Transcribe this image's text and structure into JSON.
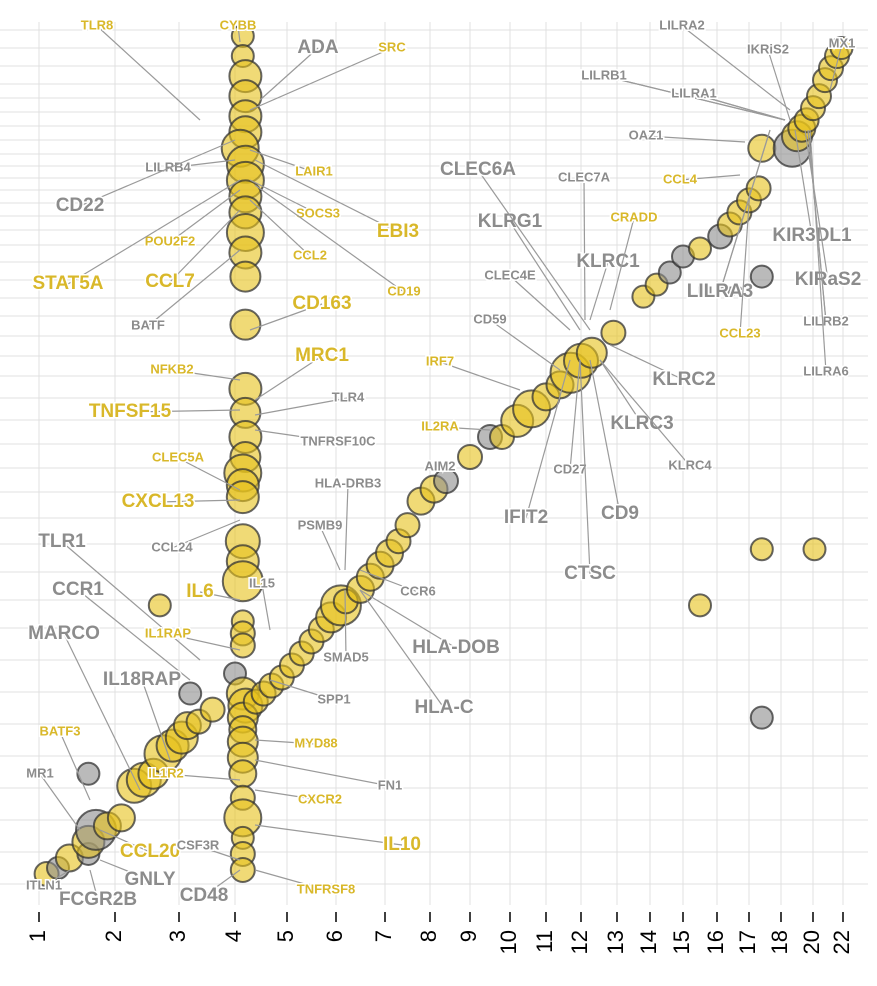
{
  "chart_data": {
    "type": "scatter",
    "title": "",
    "xlabel": "",
    "ylabel": "",
    "colors": {
      "yellow": "#e6c21a",
      "gray": "#8c8c8c",
      "label_yellow": "#d9b82a",
      "label_gray": "#8c8c8c",
      "grid": "#e0e0e0"
    },
    "x_ticks": [
      "1",
      "2",
      "3",
      "4",
      "5",
      "6",
      "7",
      "8",
      "9",
      "10",
      "11",
      "12",
      "13",
      "14",
      "15",
      "16",
      "17",
      "18",
      "20",
      "22"
    ],
    "x_tick_values": [
      1,
      2,
      3,
      4,
      5,
      6,
      7,
      8,
      9,
      10,
      11,
      12,
      13,
      14,
      15,
      16,
      17,
      18,
      20,
      22
    ],
    "grid": true,
    "points": [
      {
        "x": 4.15,
        "y": 22.0,
        "s": 1,
        "c": "y"
      },
      {
        "x": 4.15,
        "y": 21.5,
        "s": 1,
        "c": "y"
      },
      {
        "x": 4.2,
        "y": 21.0,
        "s": 2,
        "c": "y"
      },
      {
        "x": 4.2,
        "y": 20.5,
        "s": 2,
        "c": "y"
      },
      {
        "x": 4.2,
        "y": 20.0,
        "s": 2,
        "c": "y"
      },
      {
        "x": 4.2,
        "y": 19.6,
        "s": 2,
        "c": "y"
      },
      {
        "x": 4.1,
        "y": 19.2,
        "s": 2.5,
        "c": "y"
      },
      {
        "x": 4.2,
        "y": 18.8,
        "s": 2.5,
        "c": "y"
      },
      {
        "x": 4.2,
        "y": 18.4,
        "s": 2.5,
        "c": "y"
      },
      {
        "x": 4.2,
        "y": 18.0,
        "s": 2,
        "c": "y"
      },
      {
        "x": 4.2,
        "y": 17.6,
        "s": 2,
        "c": "y"
      },
      {
        "x": 4.2,
        "y": 17.1,
        "s": 2.5,
        "c": "y"
      },
      {
        "x": 4.2,
        "y": 16.6,
        "s": 2,
        "c": "y"
      },
      {
        "x": 4.2,
        "y": 16.0,
        "s": 1.8,
        "c": "y"
      },
      {
        "x": 4.2,
        "y": 14.8,
        "s": 1.8,
        "c": "y"
      },
      {
        "x": 4.2,
        "y": 13.2,
        "s": 2,
        "c": "y"
      },
      {
        "x": 4.2,
        "y": 12.6,
        "s": 1.8,
        "c": "y"
      },
      {
        "x": 4.2,
        "y": 12.0,
        "s": 2,
        "c": "y"
      },
      {
        "x": 4.2,
        "y": 11.5,
        "s": 1.8,
        "c": "y"
      },
      {
        "x": 4.15,
        "y": 11.1,
        "s": 2.5,
        "c": "y"
      },
      {
        "x": 4.15,
        "y": 10.8,
        "s": 2,
        "c": "y"
      },
      {
        "x": 4.15,
        "y": 10.5,
        "s": 2,
        "c": "y"
      },
      {
        "x": 4.15,
        "y": 9.4,
        "s": 2.2,
        "c": "y"
      },
      {
        "x": 4.15,
        "y": 8.9,
        "s": 2,
        "c": "y"
      },
      {
        "x": 4.15,
        "y": 8.4,
        "s": 2.8,
        "c": "y"
      },
      {
        "x": 4.15,
        "y": 7.4,
        "s": 1,
        "c": "y"
      },
      {
        "x": 4.15,
        "y": 7.1,
        "s": 1.2,
        "c": "y"
      },
      {
        "x": 4.15,
        "y": 6.8,
        "s": 1.2,
        "c": "y"
      },
      {
        "x": 4.0,
        "y": 6.1,
        "s": 1,
        "c": "g"
      },
      {
        "x": 4.15,
        "y": 5.6,
        "s": 2,
        "c": "y"
      },
      {
        "x": 4.2,
        "y": 5.3,
        "s": 2.2,
        "c": "y"
      },
      {
        "x": 4.15,
        "y": 5.0,
        "s": 1.8,
        "c": "y"
      },
      {
        "x": 4.15,
        "y": 4.7,
        "s": 1.5,
        "c": "y"
      },
      {
        "x": 4.15,
        "y": 4.4,
        "s": 1.8,
        "c": "y"
      },
      {
        "x": 4.15,
        "y": 4.0,
        "s": 1.8,
        "c": "y"
      },
      {
        "x": 4.15,
        "y": 3.6,
        "s": 1.5,
        "c": "y"
      },
      {
        "x": 4.15,
        "y": 3.0,
        "s": 1.2,
        "c": "y"
      },
      {
        "x": 4.15,
        "y": 2.5,
        "s": 2.5,
        "c": "y"
      },
      {
        "x": 4.15,
        "y": 2.0,
        "s": 1,
        "c": "y"
      },
      {
        "x": 4.15,
        "y": 1.6,
        "s": 1.2,
        "c": "y"
      },
      {
        "x": 4.15,
        "y": 1.2,
        "s": 1.2,
        "c": "y"
      },
      {
        "x": 1.1,
        "y": 1.1,
        "s": 1.2,
        "c": "y"
      },
      {
        "x": 1.25,
        "y": 1.25,
        "s": 1,
        "c": "g"
      },
      {
        "x": 1.4,
        "y": 1.5,
        "s": 1.5,
        "c": "y"
      },
      {
        "x": 1.65,
        "y": 1.6,
        "s": 1,
        "c": "g"
      },
      {
        "x": 1.65,
        "y": 1.9,
        "s": 2,
        "c": "y"
      },
      {
        "x": 1.75,
        "y": 2.2,
        "s": 2.8,
        "c": "g"
      },
      {
        "x": 1.9,
        "y": 2.3,
        "s": 1.5,
        "c": "y"
      },
      {
        "x": 2.1,
        "y": 2.5,
        "s": 1.5,
        "c": "y"
      },
      {
        "x": 1.65,
        "y": 3.6,
        "s": 1,
        "c": "g"
      },
      {
        "x": 2.3,
        "y": 3.3,
        "s": 2.2,
        "c": "y"
      },
      {
        "x": 2.45,
        "y": 3.45,
        "s": 2.2,
        "c": "y"
      },
      {
        "x": 2.6,
        "y": 3.6,
        "s": 1.8,
        "c": "y"
      },
      {
        "x": 2.75,
        "y": 4.1,
        "s": 2.5,
        "c": "y"
      },
      {
        "x": 2.9,
        "y": 4.3,
        "s": 2,
        "c": "y"
      },
      {
        "x": 3.05,
        "y": 4.5,
        "s": 2,
        "c": "y"
      },
      {
        "x": 3.15,
        "y": 4.8,
        "s": 1.5,
        "c": "y"
      },
      {
        "x": 3.35,
        "y": 4.9,
        "s": 1.2,
        "c": "y"
      },
      {
        "x": 3.6,
        "y": 5.2,
        "s": 1.2,
        "c": "y"
      },
      {
        "x": 3.2,
        "y": 5.6,
        "s": 1,
        "c": "g"
      },
      {
        "x": 4.4,
        "y": 5.4,
        "s": 1.2,
        "c": "y"
      },
      {
        "x": 4.55,
        "y": 5.6,
        "s": 1.2,
        "c": "y"
      },
      {
        "x": 4.7,
        "y": 5.8,
        "s": 1.2,
        "c": "y"
      },
      {
        "x": 4.9,
        "y": 6.0,
        "s": 1.2,
        "c": "y"
      },
      {
        "x": 5.1,
        "y": 6.3,
        "s": 1.2,
        "c": "y"
      },
      {
        "x": 5.3,
        "y": 6.6,
        "s": 1.2,
        "c": "y"
      },
      {
        "x": 5.5,
        "y": 6.9,
        "s": 1.2,
        "c": "y"
      },
      {
        "x": 5.7,
        "y": 7.2,
        "s": 1.3,
        "c": "y"
      },
      {
        "x": 5.9,
        "y": 7.5,
        "s": 1.8,
        "c": "y"
      },
      {
        "x": 6.1,
        "y": 7.8,
        "s": 2.8,
        "c": "y"
      },
      {
        "x": 6.2,
        "y": 7.9,
        "s": 1.2,
        "c": "y"
      },
      {
        "x": 6.5,
        "y": 8.2,
        "s": 1.5,
        "c": "y"
      },
      {
        "x": 6.7,
        "y": 8.5,
        "s": 1.5,
        "c": "y"
      },
      {
        "x": 6.9,
        "y": 8.8,
        "s": 1.5,
        "c": "y"
      },
      {
        "x": 7.1,
        "y": 9.1,
        "s": 1.5,
        "c": "y"
      },
      {
        "x": 7.3,
        "y": 9.4,
        "s": 1.2,
        "c": "y"
      },
      {
        "x": 7.5,
        "y": 9.8,
        "s": 1.2,
        "c": "y"
      },
      {
        "x": 7.8,
        "y": 10.4,
        "s": 1.5,
        "c": "y"
      },
      {
        "x": 8.1,
        "y": 10.7,
        "s": 1.5,
        "c": "y"
      },
      {
        "x": 8.4,
        "y": 10.9,
        "s": 1.2,
        "c": "g"
      },
      {
        "x": 9.0,
        "y": 11.5,
        "s": 1.2,
        "c": "y"
      },
      {
        "x": 9.5,
        "y": 12.0,
        "s": 1.2,
        "c": "g"
      },
      {
        "x": 9.8,
        "y": 12.0,
        "s": 1.2,
        "c": "y"
      },
      {
        "x": 10.2,
        "y": 12.4,
        "s": 2,
        "c": "y"
      },
      {
        "x": 10.6,
        "y": 12.7,
        "s": 2.5,
        "c": "y"
      },
      {
        "x": 11.0,
        "y": 13.0,
        "s": 1.5,
        "c": "y"
      },
      {
        "x": 11.4,
        "y": 13.3,
        "s": 1.5,
        "c": "y"
      },
      {
        "x": 11.7,
        "y": 13.6,
        "s": 2.8,
        "c": "y"
      },
      {
        "x": 12.0,
        "y": 13.9,
        "s": 2.2,
        "c": "y"
      },
      {
        "x": 12.3,
        "y": 14.1,
        "s": 1.8,
        "c": "y"
      },
      {
        "x": 12.9,
        "y": 14.6,
        "s": 1.2,
        "c": "y"
      },
      {
        "x": 13.8,
        "y": 15.5,
        "s": 1,
        "c": "y"
      },
      {
        "x": 14.2,
        "y": 15.8,
        "s": 1,
        "c": "y"
      },
      {
        "x": 14.6,
        "y": 16.1,
        "s": 1,
        "c": "g"
      },
      {
        "x": 15.0,
        "y": 16.5,
        "s": 1,
        "c": "g"
      },
      {
        "x": 15.5,
        "y": 16.7,
        "s": 1,
        "c": "y"
      },
      {
        "x": 16.1,
        "y": 17.0,
        "s": 1.2,
        "c": "g"
      },
      {
        "x": 16.4,
        "y": 17.3,
        "s": 1.2,
        "c": "y"
      },
      {
        "x": 16.7,
        "y": 17.6,
        "s": 1.2,
        "c": "y"
      },
      {
        "x": 17.0,
        "y": 17.9,
        "s": 1.2,
        "c": "y"
      },
      {
        "x": 17.3,
        "y": 18.2,
        "s": 1.2,
        "c": "y"
      },
      {
        "x": 17.4,
        "y": 19.2,
        "s": 1.5,
        "c": "y"
      },
      {
        "x": 17.4,
        "y": 16.0,
        "s": 1,
        "c": "g"
      },
      {
        "x": 18.7,
        "y": 19.2,
        "s": 2.5,
        "c": "g"
      },
      {
        "x": 19.0,
        "y": 19.5,
        "s": 1.8,
        "c": "y"
      },
      {
        "x": 19.3,
        "y": 19.7,
        "s": 1.5,
        "c": "y"
      },
      {
        "x": 19.6,
        "y": 19.9,
        "s": 1.2,
        "c": "y"
      },
      {
        "x": 20.0,
        "y": 20.2,
        "s": 1.2,
        "c": "y"
      },
      {
        "x": 20.4,
        "y": 20.5,
        "s": 1.2,
        "c": "y"
      },
      {
        "x": 20.8,
        "y": 20.9,
        "s": 1.2,
        "c": "y"
      },
      {
        "x": 21.2,
        "y": 21.2,
        "s": 1.2,
        "c": "y"
      },
      {
        "x": 21.6,
        "y": 21.5,
        "s": 1.2,
        "c": "y"
      },
      {
        "x": 21.9,
        "y": 21.7,
        "s": 1,
        "c": "y"
      },
      {
        "x": 17.4,
        "y": 9.2,
        "s": 1,
        "c": "y"
      },
      {
        "x": 20.1,
        "y": 9.2,
        "s": 1,
        "c": "y"
      },
      {
        "x": 15.5,
        "y": 7.8,
        "s": 1,
        "c": "y"
      },
      {
        "x": 17.4,
        "y": 5.0,
        "s": 1,
        "c": "g"
      },
      {
        "x": 2.7,
        "y": 7.8,
        "s": 1,
        "c": "y"
      }
    ]
  },
  "labels": [
    {
      "text": "TLR8",
      "c": "y",
      "big": false
    },
    {
      "text": "CYBB",
      "c": "y",
      "big": false
    },
    {
      "text": "ADA",
      "c": "g",
      "big": true
    },
    {
      "text": "SRC",
      "c": "y",
      "big": false
    },
    {
      "text": "LILRA1",
      "c": "g",
      "big": false
    },
    {
      "text": "LILRA3",
      "c": "g",
      "big": false
    },
    {
      "text": "LILRB1",
      "c": "g",
      "big": false
    },
    {
      "text": "LILRB2",
      "c": "g",
      "big": false
    },
    {
      "text": "LILRB4",
      "c": "g",
      "big": false
    },
    {
      "text": "LAIR1",
      "c": "y",
      "big": false
    },
    {
      "text": "CD22",
      "c": "g",
      "big": true
    },
    {
      "text": "SOCS3",
      "c": "y",
      "big": false
    },
    {
      "text": "EBI3",
      "c": "y",
      "big": true
    },
    {
      "text": "POU2F2",
      "c": "y",
      "big": false
    },
    {
      "text": "CCL2",
      "c": "y",
      "big": false
    },
    {
      "text": "STAT5A",
      "c": "y",
      "big": true
    },
    {
      "text": "CCL7",
      "c": "y",
      "big": true
    },
    {
      "text": "CD19",
      "c": "y",
      "big": false
    },
    {
      "text": "BATF",
      "c": "g",
      "big": false
    },
    {
      "text": "CD163",
      "c": "y",
      "big": true
    },
    {
      "text": "MRC1",
      "c": "y",
      "big": true
    },
    {
      "text": "NFKB2",
      "c": "y",
      "big": false
    },
    {
      "text": "TNFSF15",
      "c": "y",
      "big": true
    },
    {
      "text": "TLR4",
      "c": "g",
      "big": false
    },
    {
      "text": "TNFRSF10C",
      "c": "g",
      "big": false
    },
    {
      "text": "CLEC5A",
      "c": "y",
      "big": false
    },
    {
      "text": "CXCL13",
      "c": "y",
      "big": true
    },
    {
      "text": "CCL24",
      "c": "g",
      "big": false
    },
    {
      "text": "TLR1",
      "c": "g",
      "big": true
    },
    {
      "text": "IL6",
      "c": "y",
      "big": true
    },
    {
      "text": "IL15",
      "c": "g",
      "big": false
    },
    {
      "text": "CCR1",
      "c": "g",
      "big": true
    },
    {
      "text": "IL1RAP",
      "c": "y",
      "big": false
    },
    {
      "text": "MARCO",
      "c": "g",
      "big": true
    },
    {
      "text": "IL18RAP",
      "c": "g",
      "big": true
    },
    {
      "text": "SPP1",
      "c": "g",
      "big": false
    },
    {
      "text": "BATF3",
      "c": "y",
      "big": false
    },
    {
      "text": "MYD88",
      "c": "y",
      "big": false
    },
    {
      "text": "MR1",
      "c": "g",
      "big": false
    },
    {
      "text": "FN1",
      "c": "g",
      "big": false
    },
    {
      "text": "IL1R2",
      "c": "y",
      "big": false
    },
    {
      "text": "CXCR2",
      "c": "y",
      "big": false
    },
    {
      "text": "IL10",
      "c": "y",
      "big": true
    },
    {
      "text": "CCL20",
      "c": "y",
      "big": true
    },
    {
      "text": "CSF3R",
      "c": "g",
      "big": false
    },
    {
      "text": "GNLY",
      "c": "g",
      "big": true
    },
    {
      "text": "ITLN1",
      "c": "g",
      "big": false
    },
    {
      "text": "FCGR2B",
      "c": "g",
      "big": true
    },
    {
      "text": "CD48",
      "c": "g",
      "big": true
    },
    {
      "text": "TNFRSF8",
      "c": "y",
      "big": false
    },
    {
      "text": "HLA-DRB3",
      "c": "g",
      "big": false
    },
    {
      "text": "PSMB9",
      "c": "g",
      "big": false
    },
    {
      "text": "CCR6",
      "c": "g",
      "big": false
    },
    {
      "text": "SMAD5",
      "c": "g",
      "big": false
    },
    {
      "text": "HLA-DOB",
      "c": "g",
      "big": true
    },
    {
      "text": "HLA-C",
      "c": "g",
      "big": true
    },
    {
      "text": "AIM2",
      "c": "g",
      "big": false
    },
    {
      "text": "IL2RA",
      "c": "y",
      "big": false
    },
    {
      "text": "IRF7",
      "c": "y",
      "big": false
    },
    {
      "text": "CD59",
      "c": "g",
      "big": false
    },
    {
      "text": "CLEC4E",
      "c": "g",
      "big": false
    },
    {
      "text": "KLRG1",
      "c": "g",
      "big": true
    },
    {
      "text": "CLEC6A",
      "c": "g",
      "big": true
    },
    {
      "text": "CLEC7A",
      "c": "g",
      "big": false
    },
    {
      "text": "KLRC1",
      "c": "g",
      "big": true
    },
    {
      "text": "CRADD",
      "c": "y",
      "big": false
    },
    {
      "text": "KLRC2",
      "c": "g",
      "big": true
    },
    {
      "text": "KLRC3",
      "c": "g",
      "big": true
    },
    {
      "text": "KLRC4",
      "c": "g",
      "big": false
    },
    {
      "text": "CD27",
      "c": "g",
      "big": false
    },
    {
      "text": "CD9",
      "c": "g",
      "big": true
    },
    {
      "text": "IFIT2",
      "c": "g",
      "big": true
    },
    {
      "text": "CTSC",
      "c": "g",
      "big": true
    },
    {
      "text": "LILRA2",
      "c": "g",
      "big": false
    },
    {
      "text": "IKRiS2",
      "c": "g",
      "big": false
    },
    {
      "text": "MX1",
      "c": "g",
      "big": false
    },
    {
      "text": "LILRB1",
      "c": "g",
      "big": false
    },
    {
      "text": "LILRA1",
      "c": "g",
      "big": false
    },
    {
      "text": "OAZ1",
      "c": "g",
      "big": false
    },
    {
      "text": "CCL4",
      "c": "y",
      "big": false
    },
    {
      "text": "KIR3DL1",
      "c": "g",
      "big": true
    },
    {
      "text": "LILRA3",
      "c": "g",
      "big": true
    },
    {
      "text": "KIRaS2",
      "c": "g",
      "big": true
    },
    {
      "text": "CCL23",
      "c": "y",
      "big": false
    },
    {
      "text": "LILRB2",
      "c": "g",
      "big": false
    },
    {
      "text": "LILRA6",
      "c": "g",
      "big": false
    }
  ]
}
